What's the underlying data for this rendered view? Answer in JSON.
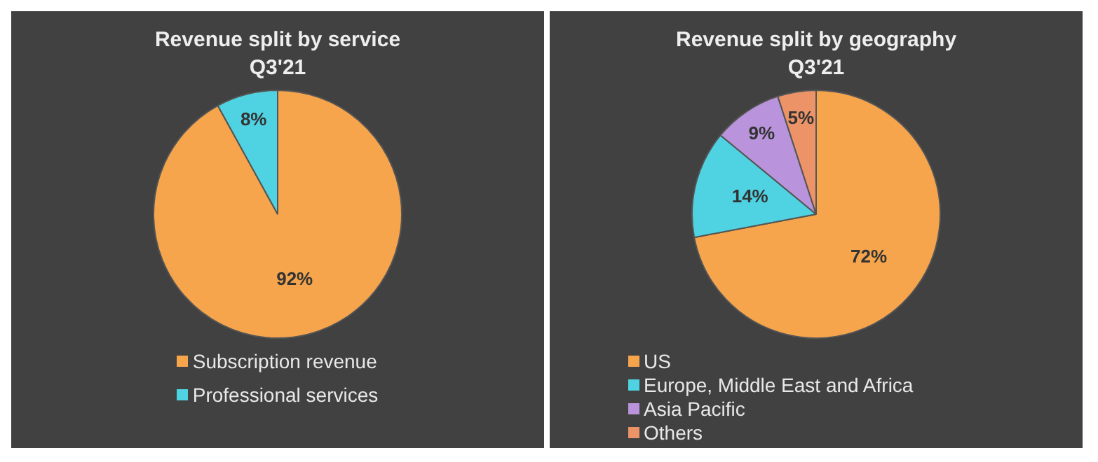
{
  "chart_data": [
    {
      "type": "pie",
      "title": "Revenue split by service",
      "subtitle": "Q3'21",
      "categories": [
        "Subscription revenue",
        "Professional services"
      ],
      "values": [
        92,
        8
      ],
      "colors": [
        "#f6a54c",
        "#4fd3e3"
      ],
      "value_labels": [
        "92%",
        "8%"
      ],
      "legend": "bottom"
    },
    {
      "type": "pie",
      "title": "Revenue split by geography",
      "subtitle": "Q3'21",
      "categories": [
        "US",
        "Europe, Middle East and Africa",
        "Asia Pacific",
        "Others"
      ],
      "values": [
        72,
        14,
        9,
        5
      ],
      "colors": [
        "#f6a54c",
        "#4fd3e3",
        "#b994dc",
        "#ec9468"
      ],
      "value_labels": [
        "72%",
        "14%",
        "9%",
        "5%"
      ],
      "legend": "bottom left"
    }
  ]
}
